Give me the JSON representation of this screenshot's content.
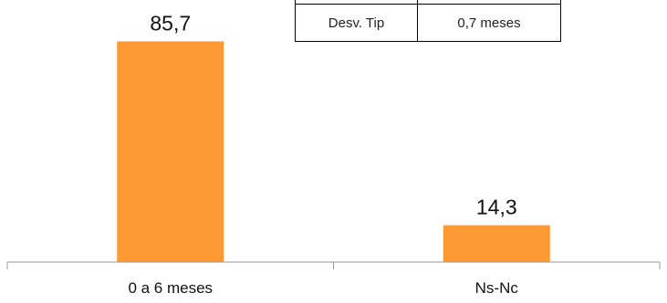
{
  "chart_data": {
    "type": "bar",
    "categories": [
      "0 a 6 meses",
      "Ns-Nc"
    ],
    "values": [
      85.7,
      14.3
    ],
    "value_labels": [
      "85,7",
      "14,3"
    ],
    "title": "",
    "xlabel": "",
    "ylabel": "",
    "ylim": [
      0,
      100
    ],
    "grid": false,
    "legend": "none",
    "bar_color": "#FF9933",
    "axis_color": "#999999"
  },
  "stats_table": {
    "label": "Desv. Tip",
    "value": "0,7  meses"
  }
}
